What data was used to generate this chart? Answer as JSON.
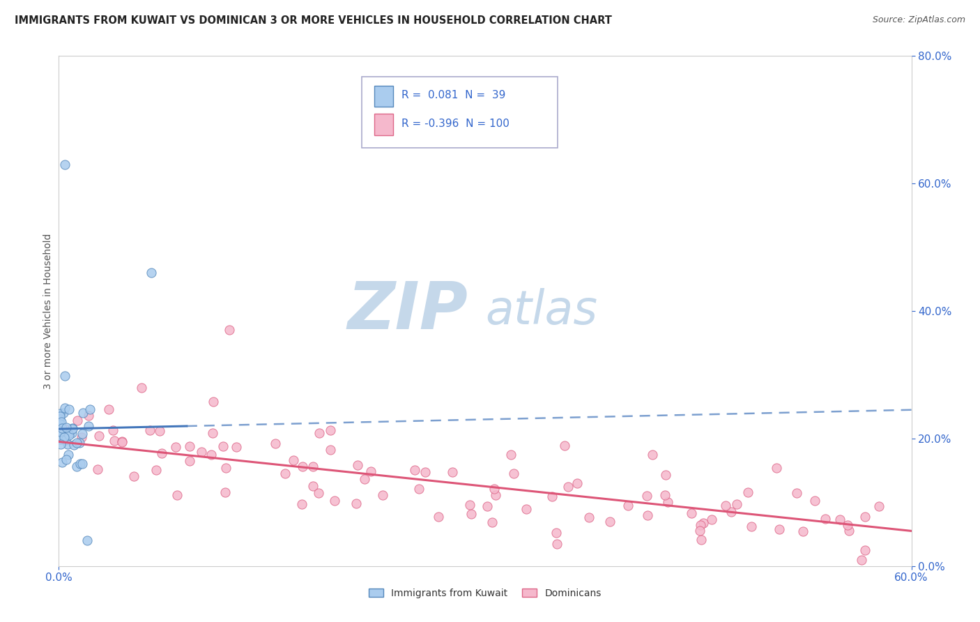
{
  "title": "IMMIGRANTS FROM KUWAIT VS DOMINICAN 3 OR MORE VEHICLES IN HOUSEHOLD CORRELATION CHART",
  "source": "Source: ZipAtlas.com",
  "ylabel_label": "3 or more Vehicles in Household",
  "xmin": 0.0,
  "xmax": 0.6,
  "ymin": 0.0,
  "ymax": 0.8,
  "kuwait_R": 0.081,
  "kuwait_N": 39,
  "dominican_R": -0.396,
  "dominican_N": 100,
  "kuwait_color": "#aaccee",
  "dominican_color": "#f5b8cc",
  "kuwait_edge_color": "#5588bb",
  "dominican_edge_color": "#dd6688",
  "kuwait_line_color": "#4477bb",
  "dominican_line_color": "#dd5577",
  "watermark_zip": "#c5d8ea",
  "watermark_atlas": "#c5d8ea",
  "legend_R_color": "#3366cc",
  "legend_N_color": "#cc2222",
  "background_color": "#ffffff",
  "grid_color": "#cccccc",
  "title_color": "#222222",
  "source_color": "#555555",
  "axis_label_color": "#3366cc",
  "ylabel_color": "#555555",
  "kuwait_seed": 77,
  "dominican_seed": 42,
  "kuwait_line_x0": 0.0,
  "kuwait_line_x1": 0.6,
  "kuwait_line_y0": 0.215,
  "kuwait_line_y1": 0.245,
  "dominican_line_x0": 0.0,
  "dominican_line_x1": 0.6,
  "dominican_line_y0": 0.195,
  "dominican_line_y1": 0.055
}
